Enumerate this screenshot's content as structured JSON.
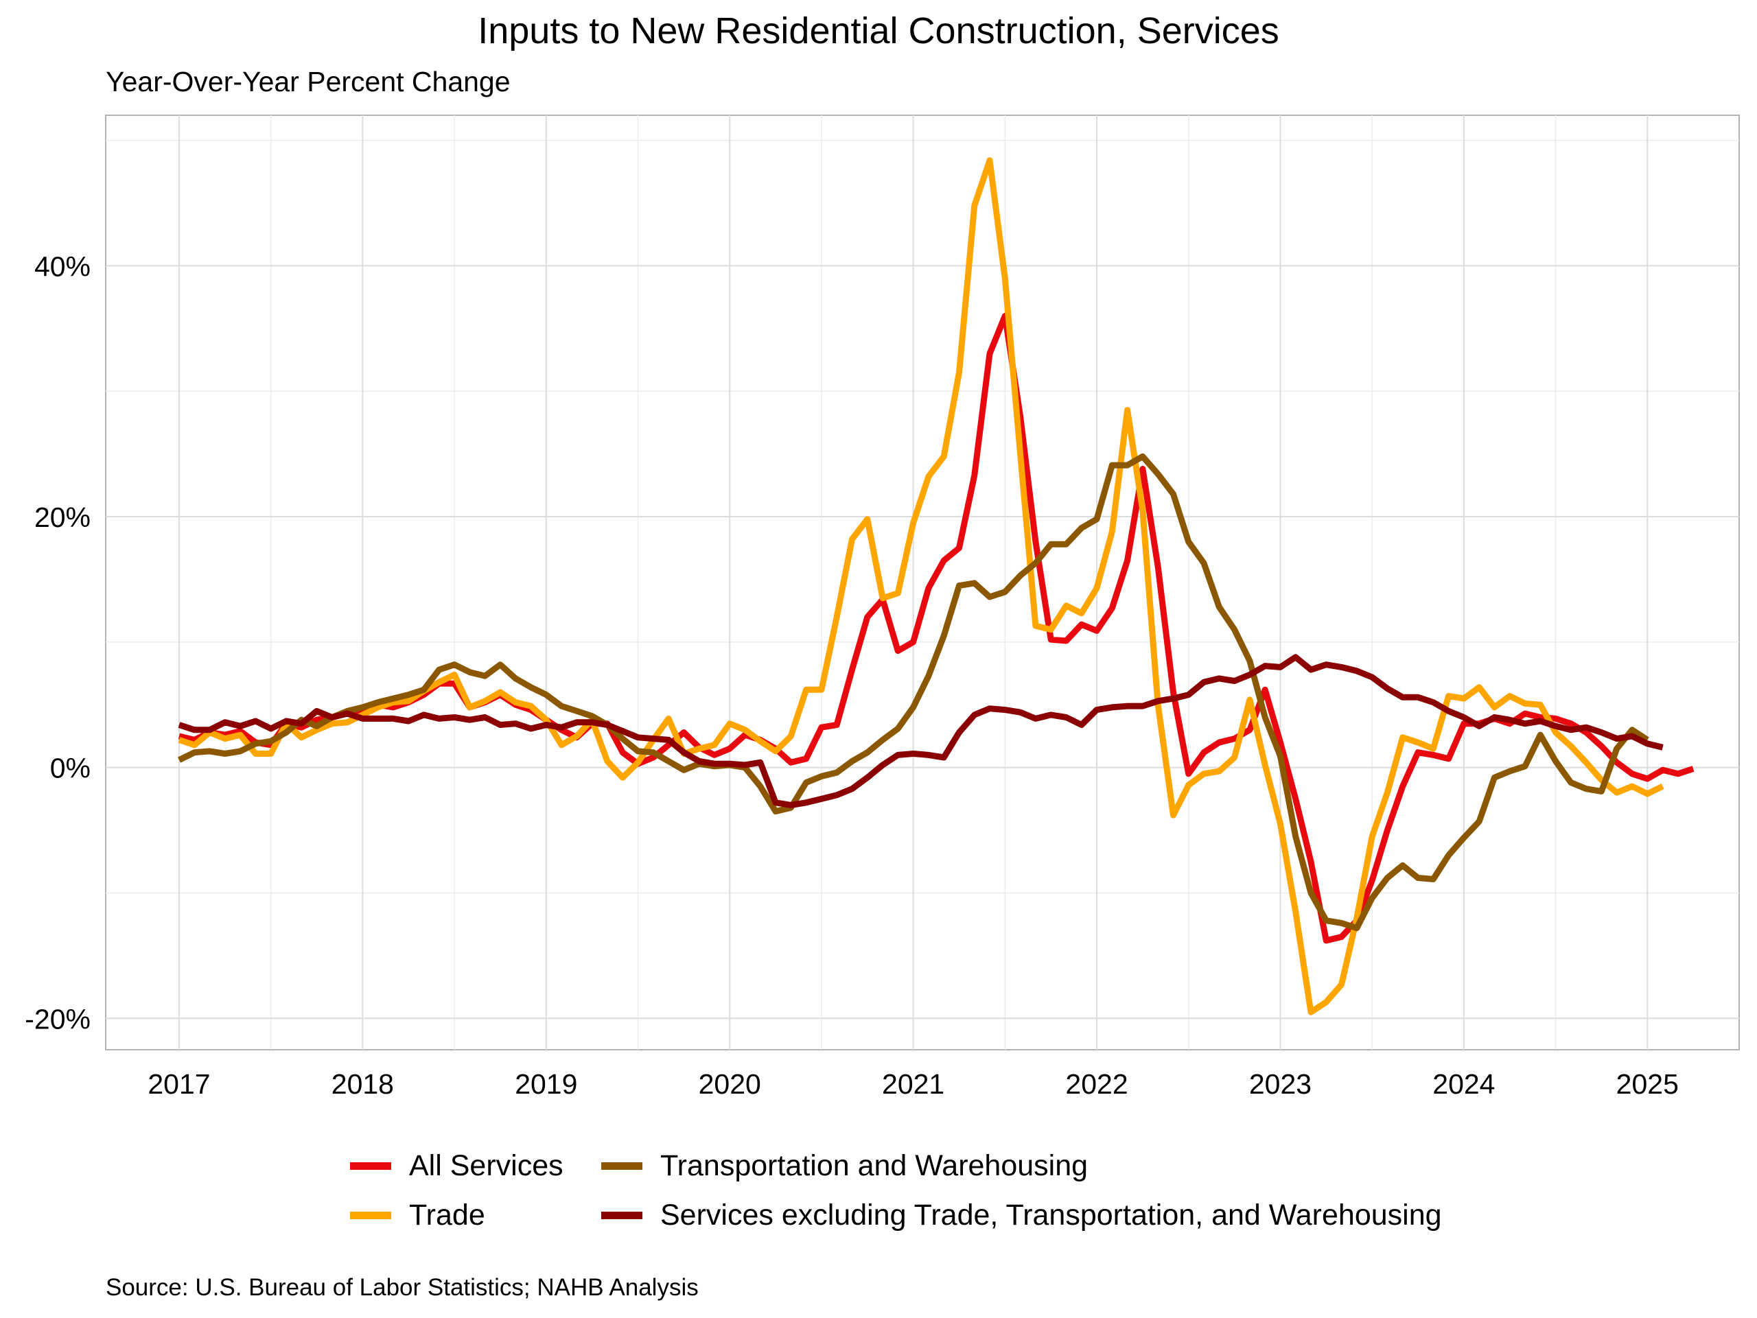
{
  "chart_data": {
    "type": "line",
    "title": "Inputs to New Residential Construction, Services",
    "subtitle": "Year-Over-Year Percent Change",
    "source": "Source: U.S. Bureau of Labor Statistics; NAHB Analysis",
    "x_range": [
      2016.6,
      2025.5
    ],
    "y_range": [
      -22.5,
      52.0
    ],
    "x_ticks": [
      {
        "value": 2017,
        "label": "2017"
      },
      {
        "value": 2018,
        "label": "2018"
      },
      {
        "value": 2019,
        "label": "2019"
      },
      {
        "value": 2020,
        "label": "2020"
      },
      {
        "value": 2021,
        "label": "2021"
      },
      {
        "value": 2022,
        "label": "2022"
      },
      {
        "value": 2023,
        "label": "2023"
      },
      {
        "value": 2024,
        "label": "2024"
      },
      {
        "value": 2025,
        "label": "2025"
      }
    ],
    "y_ticks": [
      {
        "value": -20,
        "label": "-20%"
      },
      {
        "value": 0,
        "label": "0%"
      },
      {
        "value": 20,
        "label": "20%"
      },
      {
        "value": 40,
        "label": "40%"
      }
    ],
    "y_minor": [
      -10,
      10,
      30,
      50
    ],
    "grid": true,
    "legend_position": "bottom",
    "x_start": 2017,
    "x_step": 0.083333,
    "series": [
      {
        "name": "All Services",
        "color": "#e8080f",
        "values": [
          2.5,
          2.2,
          2.8,
          2.6,
          2.9,
          2.0,
          1.8,
          3.5,
          3.2,
          3.8,
          4.0,
          4.3,
          4.5,
          5.0,
          4.8,
          5.2,
          5.8,
          6.7,
          6.7,
          4.8,
          5.2,
          5.8,
          5.0,
          4.6,
          3.8,
          3.0,
          2.4,
          3.5,
          3.5,
          1.2,
          0.3,
          0.8,
          1.8,
          2.8,
          1.6,
          1.0,
          1.5,
          2.6,
          2.2,
          1.5,
          0.4,
          0.7,
          3.2,
          3.4,
          7.8,
          12.0,
          13.4,
          9.3,
          10.0,
          14.3,
          16.5,
          17.5,
          23.3,
          33.0,
          36.0,
          28.0,
          18.0,
          10.2,
          10.1,
          11.4,
          10.9,
          12.7,
          16.5,
          23.8,
          16.0,
          6.0,
          -0.5,
          1.2,
          2.0,
          2.3,
          3.0,
          6.2,
          2.0,
          -2.5,
          -7.5,
          -13.8,
          -13.5,
          -12.2,
          -9.0,
          -5.0,
          -1.5,
          1.2,
          1.0,
          0.7,
          3.5,
          3.5,
          3.9,
          3.5,
          4.3,
          4.0,
          3.9,
          3.5,
          2.8,
          1.7,
          0.4,
          -0.5,
          -0.9,
          -0.2,
          -0.5,
          -0.1
        ]
      },
      {
        "name": "Trade",
        "color": "#ffa500",
        "values": [
          2.2,
          1.8,
          2.8,
          2.3,
          2.6,
          1.1,
          1.1,
          3.5,
          2.4,
          3.0,
          3.5,
          3.6,
          4.2,
          4.8,
          5.2,
          5.3,
          6.1,
          6.8,
          7.4,
          4.8,
          5.3,
          6.0,
          5.2,
          4.9,
          3.8,
          1.8,
          2.5,
          3.8,
          0.5,
          -0.8,
          0.4,
          2.2,
          3.9,
          1.1,
          1.5,
          1.8,
          3.5,
          3.0,
          2.1,
          1.3,
          2.5,
          6.2,
          6.2,
          12.0,
          18.2,
          19.8,
          13.5,
          13.9,
          19.5,
          23.2,
          24.8,
          31.5,
          44.8,
          48.4,
          39.0,
          25.0,
          11.3,
          11.0,
          12.9,
          12.3,
          14.3,
          18.8,
          28.5,
          20.5,
          5.0,
          -3.8,
          -1.4,
          -0.5,
          -0.3,
          0.8,
          5.4,
          0.2,
          -4.5,
          -11.5,
          -19.5,
          -18.7,
          -17.3,
          -12.0,
          -5.5,
          -2.0,
          2.4,
          2.0,
          1.5,
          5.7,
          5.5,
          6.4,
          4.8,
          5.7,
          5.1,
          5.0,
          2.8,
          1.7,
          0.4,
          -1.0,
          -2.0,
          -1.5,
          -2.1,
          -1.5
        ]
      },
      {
        "name": "Transportation and Warehousing",
        "color": "#8b5700",
        "values": [
          0.6,
          1.2,
          1.3,
          1.1,
          1.3,
          1.9,
          2.1,
          2.8,
          3.8,
          3.3,
          4.0,
          4.5,
          4.8,
          5.2,
          5.5,
          5.8,
          6.2,
          7.8,
          8.2,
          7.6,
          7.3,
          8.2,
          7.1,
          6.4,
          5.8,
          4.9,
          4.5,
          4.1,
          3.4,
          2.3,
          1.3,
          1.2,
          0.5,
          -0.2,
          0.3,
          0.1,
          0.2,
          0.0,
          -1.5,
          -3.5,
          -3.2,
          -1.2,
          -0.7,
          -0.4,
          0.5,
          1.2,
          2.2,
          3.1,
          4.8,
          7.3,
          10.5,
          14.5,
          14.7,
          13.6,
          14.0,
          15.3,
          16.3,
          17.8,
          17.8,
          19.1,
          19.8,
          24.1,
          24.1,
          24.8,
          23.4,
          21.8,
          18.0,
          16.3,
          12.8,
          11.0,
          8.5,
          4.0,
          0.9,
          -5.5,
          -10.0,
          -12.2,
          -12.4,
          -12.8,
          -10.4,
          -8.8,
          -7.8,
          -8.8,
          -8.9,
          -7.0,
          -5.6,
          -4.3,
          -0.8,
          -0.3,
          0.1,
          2.6,
          0.5,
          -1.2,
          -1.7,
          -1.9,
          1.5,
          3.0,
          2.2
        ]
      },
      {
        "name": "Services excluding Trade, Transportation, and Warehousing",
        "color": "#8b0000",
        "values": [
          3.4,
          3.0,
          3.0,
          3.6,
          3.3,
          3.7,
          3.1,
          3.7,
          3.5,
          4.5,
          4.0,
          4.3,
          3.9,
          3.9,
          3.9,
          3.7,
          4.2,
          3.9,
          4.0,
          3.8,
          4.0,
          3.4,
          3.5,
          3.1,
          3.4,
          3.2,
          3.6,
          3.6,
          3.4,
          2.9,
          2.4,
          2.3,
          2.2,
          1.2,
          0.5,
          0.3,
          0.3,
          0.2,
          0.4,
          -2.8,
          -3.0,
          -2.8,
          -2.5,
          -2.2,
          -1.7,
          -0.8,
          0.2,
          1.0,
          1.1,
          1.0,
          0.8,
          2.8,
          4.2,
          4.7,
          4.6,
          4.4,
          3.9,
          4.2,
          4.0,
          3.4,
          4.6,
          4.8,
          4.9,
          4.9,
          5.3,
          5.5,
          5.8,
          6.8,
          7.1,
          6.9,
          7.4,
          8.1,
          8.0,
          8.8,
          7.8,
          8.2,
          8.0,
          7.7,
          7.2,
          6.3,
          5.6,
          5.6,
          5.2,
          4.5,
          4.0,
          3.3,
          4.0,
          3.8,
          3.5,
          3.7,
          3.3,
          3.0,
          3.2,
          2.8,
          2.3,
          2.5,
          1.9,
          1.6
        ]
      }
    ]
  }
}
